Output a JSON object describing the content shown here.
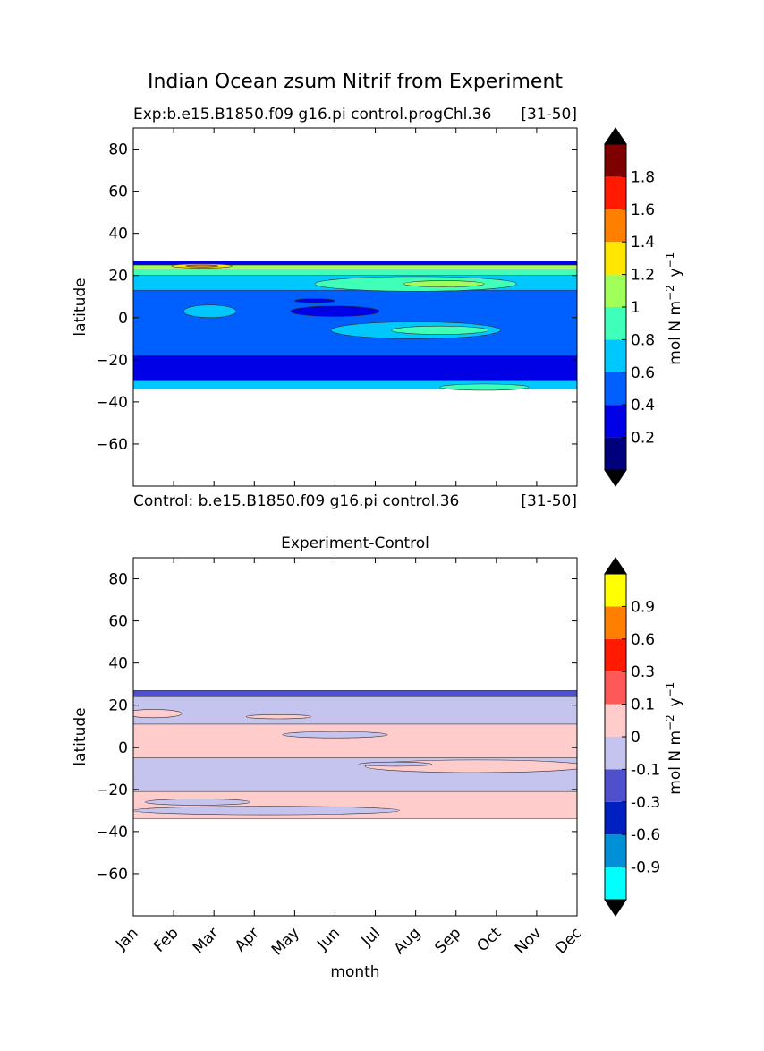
{
  "figure": {
    "suptitle": "Indian Ocean zsum Nitrif from Experiment"
  },
  "chart_data": [
    {
      "type": "heatmap",
      "title": "",
      "subtitle_left": "Exp:b.e15.B1850.f09 g16.pi control.progChl.36",
      "subtitle_right": "[31-50]",
      "caption_left": "Control: b.e15.B1850.f09 g16.pi control.36",
      "caption_right": "[31-50]",
      "xlabel": "",
      "ylabel": "latitude",
      "ylim": [
        -80,
        90
      ],
      "yticks": [
        80,
        60,
        40,
        20,
        0,
        -20,
        -40,
        -60
      ],
      "data_lat_range": [
        -34,
        27
      ],
      "colorbar": {
        "label": "mol N m^-2 y^-1",
        "extend": "both",
        "colors": [
          "#00007f",
          "#0000e6",
          "#0060ff",
          "#00c8ff",
          "#40ffb8",
          "#a0ff58",
          "#ffe600",
          "#ff8000",
          "#ff1a00",
          "#7f0000"
        ],
        "under_color": "#000000",
        "over_color": "#000000",
        "tick_labels": [
          "0.2",
          "0.4",
          "0.6",
          "0.8",
          "1",
          "1.2",
          "1.4",
          "1.6",
          "1.8"
        ]
      },
      "bands": [
        {
          "lat": [
            -34,
            -30
          ],
          "color": "#00c8ff"
        },
        {
          "lat": [
            -30,
            -18
          ],
          "color": "#0000e6"
        },
        {
          "lat": [
            -18,
            13
          ],
          "color": "#0060ff"
        },
        {
          "lat": [
            13,
            20
          ],
          "color": "#00c8ff"
        },
        {
          "lat": [
            20,
            23
          ],
          "color": "#40ffb8"
        },
        {
          "lat": [
            23,
            25
          ],
          "color": "#a0ff58"
        },
        {
          "lat": [
            25,
            27
          ],
          "color": "#0000e6"
        }
      ],
      "features": [
        {
          "month": 7.0,
          "lat": -6,
          "w": 4.2,
          "h": 8,
          "color": "#00c8ff"
        },
        {
          "month": 7.6,
          "lat": -6,
          "w": 2.4,
          "h": 4,
          "color": "#40ffb8"
        },
        {
          "month": 1.9,
          "lat": 3,
          "w": 1.3,
          "h": 6,
          "color": "#00c8ff"
        },
        {
          "month": 5.0,
          "lat": 3,
          "w": 2.2,
          "h": 5,
          "color": "#0000e6"
        },
        {
          "month": 4.5,
          "lat": 8,
          "w": 1.0,
          "h": 2,
          "color": "#0000e6"
        },
        {
          "month": 7.0,
          "lat": 16,
          "w": 5.0,
          "h": 7,
          "color": "#40ffb8"
        },
        {
          "month": 7.7,
          "lat": 16,
          "w": 2.0,
          "h": 3,
          "color": "#a0ff58"
        },
        {
          "month": 8.7,
          "lat": -33,
          "w": 2.2,
          "h": 3,
          "color": "#40ffb8"
        },
        {
          "month": 1.7,
          "lat": 24.5,
          "w": 1.5,
          "h": 2,
          "color": "#ffe600"
        },
        {
          "month": 1.7,
          "lat": 24.5,
          "w": 0.8,
          "h": 1,
          "color": "#ff8000"
        }
      ]
    },
    {
      "type": "heatmap",
      "title": "Experiment-Control",
      "xlabel": "month",
      "ylabel": "latitude",
      "ylim": [
        -80,
        90
      ],
      "yticks": [
        80,
        60,
        40,
        20,
        0,
        -20,
        -40,
        -60
      ],
      "xticks": [
        "Jan",
        "Feb",
        "Mar",
        "Apr",
        "May",
        "Jun",
        "Jul",
        "Aug",
        "Sep",
        "Oct",
        "Nov",
        "Dec"
      ],
      "data_lat_range": [
        -34,
        27
      ],
      "colorbar": {
        "label": "mol N m^-2 y^-1",
        "extend": "both",
        "colors": [
          "#00ffff",
          "#0090d8",
          "#0020c0",
          "#5050cc",
          "#c4c4ee",
          "#ffcccc",
          "#ff5858",
          "#ff1a00",
          "#ff8000",
          "#ffff00"
        ],
        "under_color": "#000000",
        "over_color": "#000000",
        "tick_labels": [
          "-0.9",
          "-0.6",
          "-0.3",
          "-0.1",
          "0",
          "0.1",
          "0.3",
          "0.6",
          "0.9"
        ]
      },
      "bands": [
        {
          "lat": [
            -34,
            -21
          ],
          "color": "#ffcccc"
        },
        {
          "lat": [
            -21,
            -5
          ],
          "color": "#c4c4ee"
        },
        {
          "lat": [
            -5,
            11
          ],
          "color": "#ffcccc"
        },
        {
          "lat": [
            11,
            24
          ],
          "color": "#c4c4ee"
        },
        {
          "lat": [
            24,
            27
          ],
          "color": "#5050cc"
        }
      ],
      "features": [
        {
          "month": 3.3,
          "lat": -30,
          "w": 6.6,
          "h": 4,
          "color": "#c4c4ee"
        },
        {
          "month": 1.6,
          "lat": -26,
          "w": 2.6,
          "h": 3,
          "color": "#c4c4ee"
        },
        {
          "month": 8.5,
          "lat": -9,
          "w": 5.5,
          "h": 6,
          "color": "#ffcccc"
        },
        {
          "month": 6.5,
          "lat": -8,
          "w": 1.8,
          "h": 2,
          "color": "#c4c4ee"
        },
        {
          "month": 0.5,
          "lat": 16,
          "w": 1.4,
          "h": 4,
          "color": "#ffcccc"
        },
        {
          "month": 3.6,
          "lat": 14.5,
          "w": 1.6,
          "h": 2,
          "color": "#ffcccc"
        },
        {
          "month": 5.0,
          "lat": 6,
          "w": 2.6,
          "h": 3,
          "color": "#c4c4ee"
        }
      ]
    }
  ]
}
